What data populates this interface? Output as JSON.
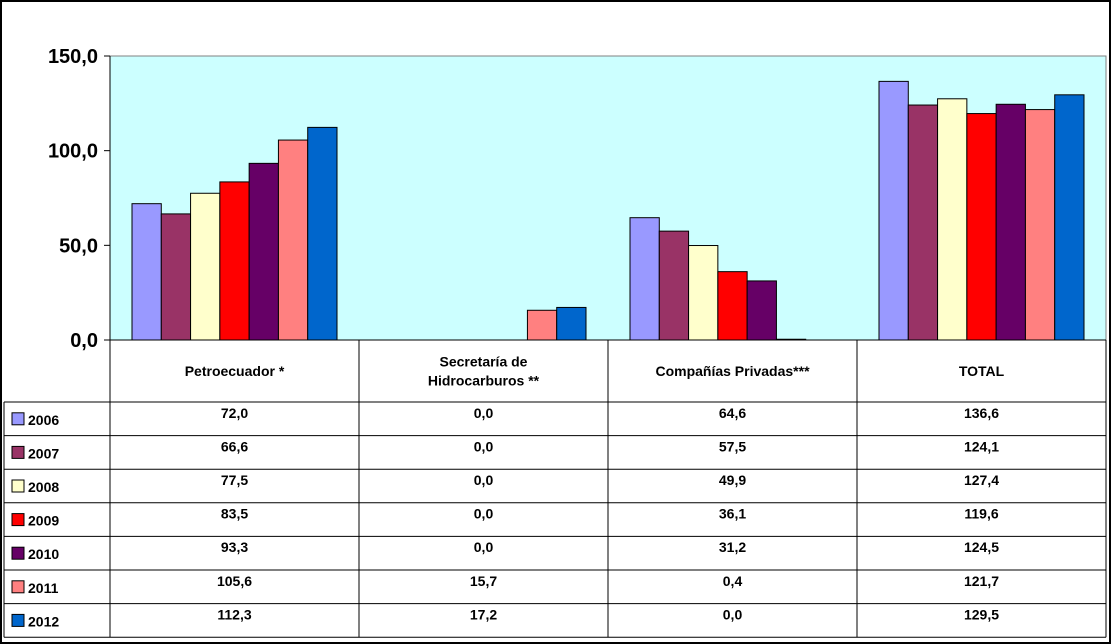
{
  "chart_data": {
    "type": "bar",
    "categories": [
      "Petroecuador *",
      "Secretaría de Hidrocarburos **",
      "Compañías Privadas***",
      "TOTAL"
    ],
    "category_lines": [
      [
        "Petroecuador *"
      ],
      [
        "Secretaría de",
        "Hidrocarburos **"
      ],
      [
        "Compañías Privadas***"
      ],
      [
        "TOTAL"
      ]
    ],
    "series": [
      {
        "name": "2006",
        "color": "#9999FF",
        "values": [
          72.0,
          0.0,
          64.6,
          136.6
        ],
        "labels": [
          "72,0",
          "0,0",
          "64,6",
          "136,6"
        ]
      },
      {
        "name": "2007",
        "color": "#993366",
        "values": [
          66.6,
          0.0,
          57.5,
          124.1
        ],
        "labels": [
          "66,6",
          "0,0",
          "57,5",
          "124,1"
        ]
      },
      {
        "name": "2008",
        "color": "#FFFFCC",
        "values": [
          77.5,
          0.0,
          49.9,
          127.4
        ],
        "labels": [
          "77,5",
          "0,0",
          "49,9",
          "127,4"
        ]
      },
      {
        "name": "2009",
        "color": "#FF0000",
        "values": [
          83.5,
          0.0,
          36.1,
          119.6
        ],
        "labels": [
          "83,5",
          "0,0",
          "36,1",
          "119,6"
        ]
      },
      {
        "name": "2010",
        "color": "#660066",
        "values": [
          93.3,
          0.0,
          31.2,
          124.5
        ],
        "labels": [
          "93,3",
          "0,0",
          "31,2",
          "124,5"
        ]
      },
      {
        "name": "2011",
        "color": "#FF8080",
        "values": [
          105.6,
          15.7,
          0.4,
          121.7
        ],
        "labels": [
          "105,6",
          "15,7",
          "0,4",
          "121,7"
        ]
      },
      {
        "name": "2012",
        "color": "#0066CC",
        "values": [
          112.3,
          17.2,
          0.0,
          129.5
        ],
        "labels": [
          "112,3",
          "17,2",
          "0,0",
          "129,5"
        ]
      }
    ],
    "yticks": [
      {
        "value": 0,
        "label": "0,0"
      },
      {
        "value": 50,
        "label": "50,0"
      },
      {
        "value": 100,
        "label": "100,0"
      },
      {
        "value": 150,
        "label": "150,0"
      }
    ],
    "ylim": [
      0,
      150
    ],
    "title": "",
    "xlabel": "",
    "ylabel": "",
    "grid": false,
    "plot_background": "#CCFFFF",
    "legend": "data table"
  }
}
